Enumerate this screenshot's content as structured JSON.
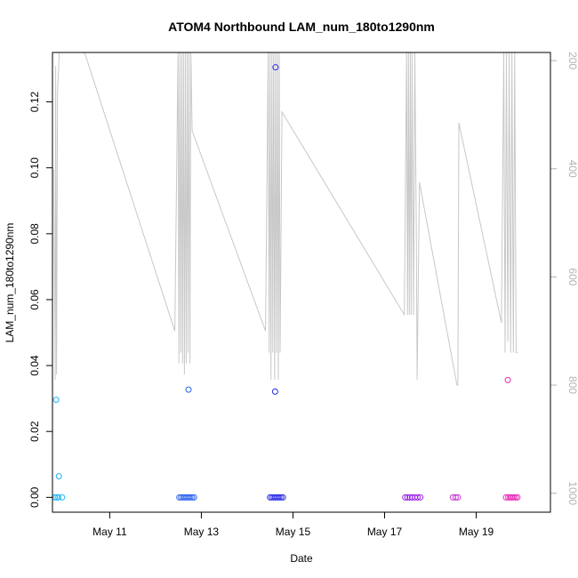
{
  "chart_data": {
    "type": "scatter",
    "title": "ATOM4 Northbound LAM_num_180to1290nm",
    "xlabel": "Date",
    "ylabel": "LAM_num_180to1290nm",
    "x_unit": "day of May (fractional)",
    "xlim": [
      9.75,
      20.62
    ],
    "ylim": [
      -0.0045,
      0.135
    ],
    "y_ticks": [
      0.0,
      0.02,
      0.04,
      0.06,
      0.08,
      0.1,
      0.12
    ],
    "y_tick_labels": [
      "0.00",
      "0.02",
      "0.04",
      "0.06",
      "0.08",
      "0.10",
      "0.12"
    ],
    "x_ticks": [
      11,
      13,
      15,
      17,
      19
    ],
    "x_tick_labels": [
      "May 11",
      "May 13",
      "May 15",
      "May 17",
      "May 19"
    ],
    "right_axis": {
      "ylim": [
        185,
        1035
      ],
      "reversed": true,
      "ticks": [
        200,
        400,
        600,
        800,
        1000
      ],
      "tick_labels": [
        "200",
        "400",
        "600",
        "800",
        "1000"
      ],
      "color": "#b3b3b3"
    },
    "grid": false,
    "legend": "none",
    "points": [
      {
        "x": 9.83,
        "y": 0.0296,
        "color": "#1EB4F0"
      },
      {
        "x": 9.89,
        "y": 0.0064,
        "color": "#1EB4F0"
      },
      {
        "x": 9.8,
        "y": 0.0,
        "color": "#1EB4F0"
      },
      {
        "x": 9.84,
        "y": 0.0,
        "color": "#1EB4F0"
      },
      {
        "x": 9.88,
        "y": 0.0,
        "color": "#1EB4F0"
      },
      {
        "x": 9.96,
        "y": 0.0,
        "color": "#1EB4F0"
      },
      {
        "x": 12.72,
        "y": 0.0327,
        "color": "#2A62F0"
      },
      {
        "x": 12.52,
        "y": 0.0,
        "color": "#2A62F0"
      },
      {
        "x": 12.56,
        "y": 0.0,
        "color": "#2A62F0"
      },
      {
        "x": 12.6,
        "y": 0.0,
        "color": "#2A62F0"
      },
      {
        "x": 12.64,
        "y": 0.0,
        "color": "#2A62F0"
      },
      {
        "x": 12.68,
        "y": 0.0,
        "color": "#2A62F0"
      },
      {
        "x": 12.72,
        "y": 0.0,
        "color": "#2A62F0"
      },
      {
        "x": 12.76,
        "y": 0.0,
        "color": "#2A62F0"
      },
      {
        "x": 12.8,
        "y": 0.0,
        "color": "#2A62F0"
      },
      {
        "x": 12.84,
        "y": 0.0,
        "color": "#2A62F0"
      },
      {
        "x": 14.62,
        "y": 0.1305,
        "color": "#2828E6"
      },
      {
        "x": 14.61,
        "y": 0.0321,
        "color": "#2828E6"
      },
      {
        "x": 14.5,
        "y": 0.0,
        "color": "#2828E6"
      },
      {
        "x": 14.54,
        "y": 0.0,
        "color": "#2828E6"
      },
      {
        "x": 14.58,
        "y": 0.0,
        "color": "#2828E6"
      },
      {
        "x": 14.62,
        "y": 0.0,
        "color": "#2828E6"
      },
      {
        "x": 14.66,
        "y": 0.0,
        "color": "#2828E6"
      },
      {
        "x": 14.7,
        "y": 0.0,
        "color": "#2828E6"
      },
      {
        "x": 14.74,
        "y": 0.0,
        "color": "#2828E6"
      },
      {
        "x": 14.78,
        "y": 0.0,
        "color": "#2828E6"
      },
      {
        "x": 17.45,
        "y": 0.0,
        "color": "#9A1EE6"
      },
      {
        "x": 17.5,
        "y": 0.0,
        "color": "#9A1EE6"
      },
      {
        "x": 17.55,
        "y": 0.0,
        "color": "#9A1EE6"
      },
      {
        "x": 17.6,
        "y": 0.0,
        "color": "#9A1EE6"
      },
      {
        "x": 17.66,
        "y": 0.0,
        "color": "#9A1EE6"
      },
      {
        "x": 17.72,
        "y": 0.0,
        "color": "#9A1EE6"
      },
      {
        "x": 17.78,
        "y": 0.0,
        "color": "#9A1EE6"
      },
      {
        "x": 18.49,
        "y": 0.0,
        "color": "#C832D2"
      },
      {
        "x": 18.55,
        "y": 0.0,
        "color": "#C832D2"
      },
      {
        "x": 18.6,
        "y": 0.0,
        "color": "#C832D2"
      },
      {
        "x": 19.69,
        "y": 0.0356,
        "color": "#E628B4"
      },
      {
        "x": 19.65,
        "y": 0.0,
        "color": "#E628B4"
      },
      {
        "x": 19.7,
        "y": 0.0,
        "color": "#E628B4"
      },
      {
        "x": 19.74,
        "y": 0.0,
        "color": "#E628B4"
      },
      {
        "x": 19.78,
        "y": 0.0,
        "color": "#E628B4"
      },
      {
        "x": 19.82,
        "y": 0.0,
        "color": "#E628B4"
      },
      {
        "x": 19.86,
        "y": 0.0,
        "color": "#E628B4"
      },
      {
        "x": 19.9,
        "y": 0.0,
        "color": "#E628B4"
      }
    ],
    "secondary_series": {
      "color": "#c8c8c8",
      "x": [
        9.78,
        9.81,
        9.82,
        9.84,
        9.86,
        9.9,
        10.45,
        12.42,
        12.49,
        12.51,
        12.53,
        12.55,
        12.57,
        12.59,
        12.61,
        12.63,
        12.65,
        12.67,
        12.69,
        12.71,
        12.73,
        12.75,
        12.77,
        12.8,
        14.4,
        14.46,
        14.48,
        14.5,
        14.52,
        14.54,
        14.56,
        14.58,
        14.6,
        14.62,
        14.64,
        14.66,
        14.68,
        14.7,
        14.72,
        14.76,
        17.43,
        17.48,
        17.5,
        17.52,
        17.54,
        17.56,
        17.58,
        17.6,
        17.63,
        17.66,
        17.69,
        17.71,
        17.76,
        18.58,
        18.6,
        18.62,
        19.55,
        19.6,
        19.63,
        19.66,
        19.69,
        19.72,
        19.75,
        19.78,
        19.81,
        19.84,
        19.87,
        19.9
      ],
      "y": [
        400,
        790,
        210,
        780,
        260,
        185,
        185,
        700,
        185,
        760,
        185,
        740,
        185,
        760,
        185,
        780,
        185,
        760,
        185,
        740,
        185,
        760,
        185,
        330,
        700,
        185,
        740,
        185,
        790,
        185,
        740,
        185,
        790,
        185,
        740,
        185,
        790,
        185,
        740,
        295,
        670,
        185,
        670,
        185,
        670,
        185,
        670,
        185,
        670,
        185,
        500,
        790,
        425,
        800,
        800,
        315,
        685,
        185,
        740,
        185,
        720,
        185,
        740,
        185,
        740,
        185,
        740,
        740
      ]
    }
  }
}
